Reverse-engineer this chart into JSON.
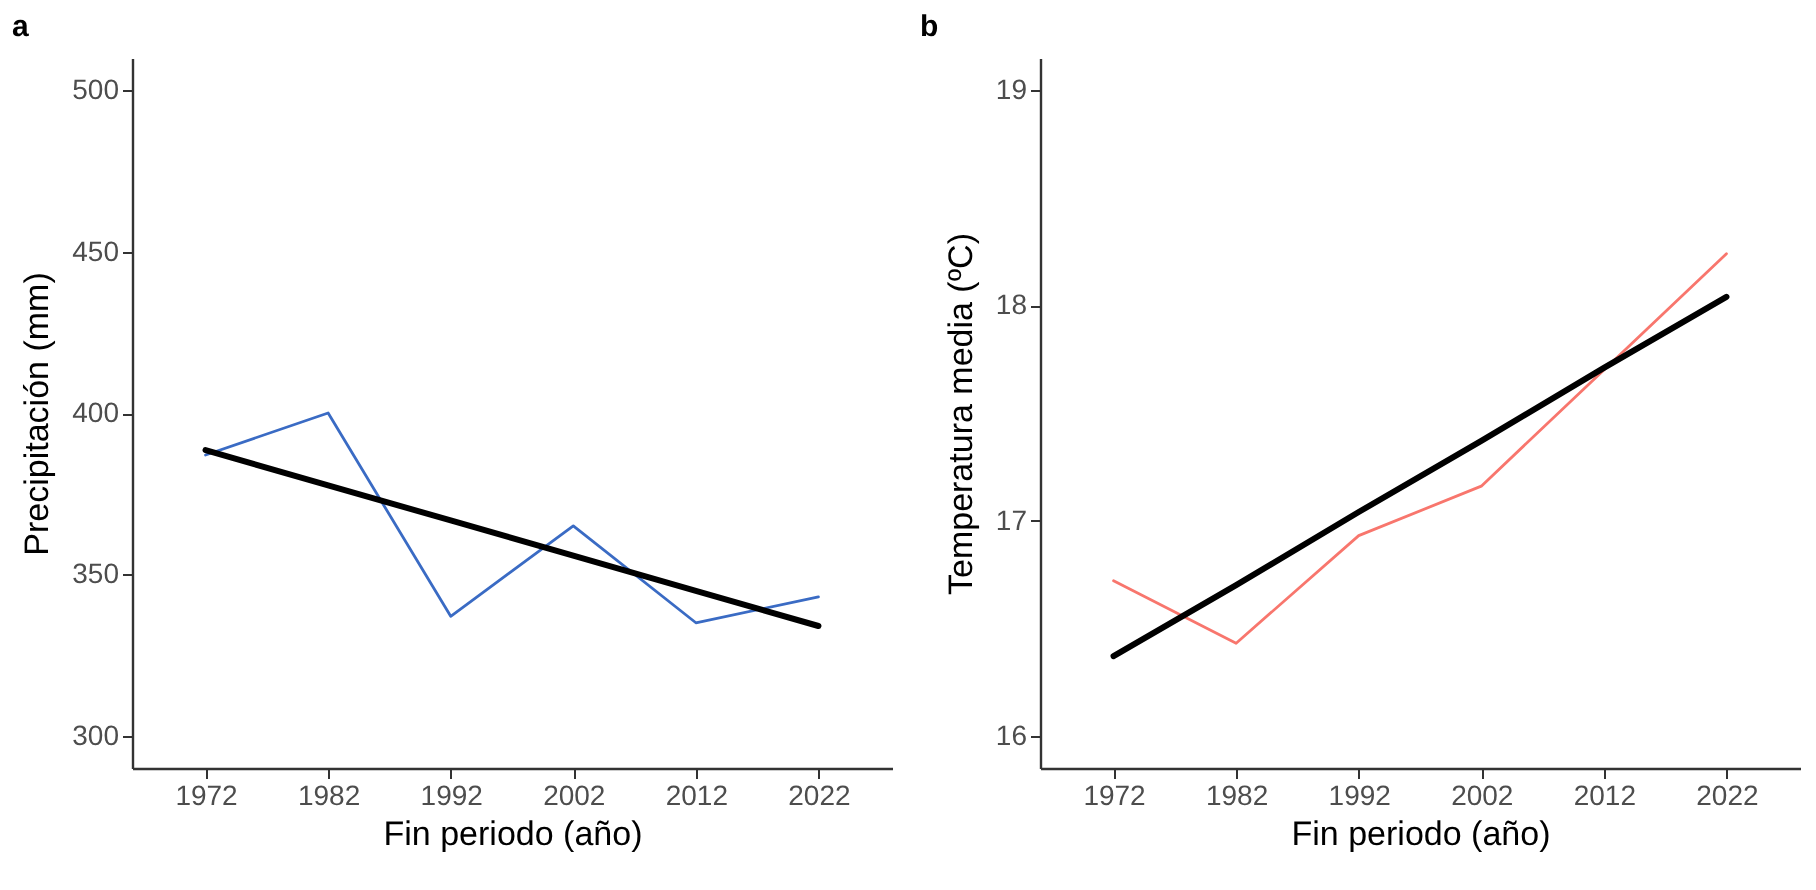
{
  "chart_data": [
    {
      "type": "line",
      "title": "a",
      "xlabel": "Fin periodo (año)",
      "ylabel": "Precipitación (mm)",
      "x": [
        1972,
        1982,
        1992,
        2002,
        2012,
        2022
      ],
      "xlim": [
        1966,
        2028
      ],
      "xticks": [
        1972,
        1982,
        1992,
        2002,
        2012,
        2022
      ],
      "ylim": [
        290,
        510
      ],
      "yticks": [
        300,
        350,
        400,
        450,
        500
      ],
      "grid": false,
      "series": [
        {
          "color": "#3a6bc4",
          "values": [
            387,
            400,
            337,
            365,
            335,
            343
          ]
        },
        {
          "color": "#000000",
          "values": [
            388.5,
            377.6,
            366.7,
            355.8,
            344.9,
            334
          ]
        }
      ]
    },
    {
      "type": "line",
      "title": "b",
      "xlabel": "Fin periodo (año)",
      "ylabel": "Temperatura media (ºC)",
      "x": [
        1972,
        1982,
        1992,
        2002,
        2012,
        2022
      ],
      "xlim": [
        1966,
        2028
      ],
      "xticks": [
        1972,
        1982,
        1992,
        2002,
        2012,
        2022
      ],
      "ylim": [
        15.85,
        19.15
      ],
      "yticks": [
        16,
        17,
        18,
        19
      ],
      "grid": false,
      "series": [
        {
          "color": "#f8766d",
          "values": [
            16.72,
            16.43,
            16.93,
            17.16,
            17.7,
            18.24
          ]
        },
        {
          "color": "#000000",
          "values": [
            16.37,
            16.7,
            17.04,
            17.37,
            17.71,
            18.04
          ]
        }
      ]
    }
  ]
}
